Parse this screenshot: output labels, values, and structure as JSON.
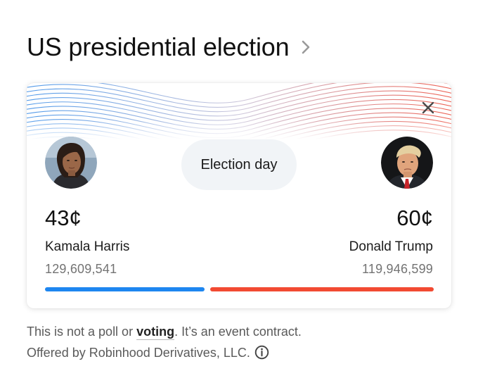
{
  "header": {
    "title": "US presidential election"
  },
  "colors": {
    "harris": "#1e86f0",
    "trump": "#f24a32",
    "pill_bg": "#f1f4f7"
  },
  "icons": {
    "header_chevron": "chevron-right-icon",
    "close": "close-icon",
    "info": "info-icon"
  },
  "card": {
    "center_label": "Election day",
    "candidates": [
      {
        "name": "Kamala Harris",
        "price": "43¢",
        "votes": "129,609,541"
      },
      {
        "name": "Donald Trump",
        "price": "60¢",
        "votes": "119,946,599"
      }
    ]
  },
  "footer": {
    "line1_pre": "This is not a poll or ",
    "line1_link": "voting",
    "line1_post": ". It’s an event contract.",
    "line2": "Offered by Robinhood Derivatives, LLC."
  }
}
